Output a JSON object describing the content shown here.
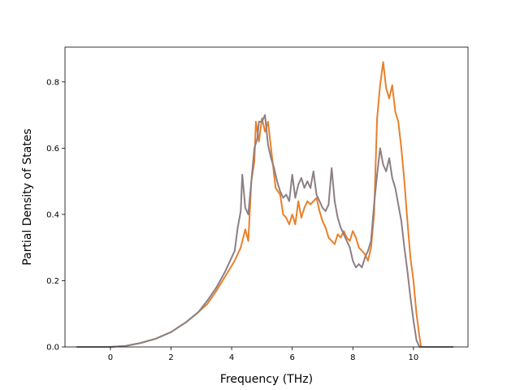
{
  "chart_data": {
    "type": "line",
    "title": "",
    "xlabel": "Frequency (THz)",
    "ylabel": "Partial Density of States",
    "xlim": [
      -1.5,
      11.8
    ],
    "ylim": [
      0,
      0.905
    ],
    "grid": false,
    "legend": "none",
    "x_ticks": [
      0,
      2,
      4,
      6,
      8,
      10
    ],
    "x_tick_labels": [
      "0",
      "2",
      "4",
      "6",
      "8",
      "10"
    ],
    "y_ticks": [
      0.0,
      0.2,
      0.4,
      0.6,
      0.8
    ],
    "y_tick_labels": [
      "0.0",
      "0.2",
      "0.4",
      "0.6",
      "0.8"
    ],
    "series": [
      {
        "color": "#e8802a",
        "points": [
          [
            -1.1,
            0.0
          ],
          [
            0.0,
            0.0
          ],
          [
            0.5,
            0.003
          ],
          [
            1.0,
            0.012
          ],
          [
            1.5,
            0.025
          ],
          [
            2.0,
            0.045
          ],
          [
            2.5,
            0.075
          ],
          [
            2.9,
            0.105
          ],
          [
            3.2,
            0.13
          ],
          [
            3.5,
            0.17
          ],
          [
            3.8,
            0.215
          ],
          [
            4.1,
            0.26
          ],
          [
            4.3,
            0.3
          ],
          [
            4.45,
            0.355
          ],
          [
            4.55,
            0.32
          ],
          [
            4.65,
            0.5
          ],
          [
            4.75,
            0.56
          ],
          [
            4.8,
            0.68
          ],
          [
            4.9,
            0.62
          ],
          [
            5.0,
            0.69
          ],
          [
            5.1,
            0.65
          ],
          [
            5.2,
            0.68
          ],
          [
            5.3,
            0.6
          ],
          [
            5.45,
            0.48
          ],
          [
            5.6,
            0.46
          ],
          [
            5.7,
            0.4
          ],
          [
            5.8,
            0.39
          ],
          [
            5.9,
            0.37
          ],
          [
            6.0,
            0.4
          ],
          [
            6.1,
            0.37
          ],
          [
            6.2,
            0.44
          ],
          [
            6.3,
            0.39
          ],
          [
            6.4,
            0.42
          ],
          [
            6.5,
            0.44
          ],
          [
            6.6,
            0.43
          ],
          [
            6.7,
            0.44
          ],
          [
            6.8,
            0.45
          ],
          [
            6.9,
            0.41
          ],
          [
            7.0,
            0.38
          ],
          [
            7.1,
            0.36
          ],
          [
            7.2,
            0.33
          ],
          [
            7.3,
            0.32
          ],
          [
            7.4,
            0.31
          ],
          [
            7.5,
            0.34
          ],
          [
            7.6,
            0.33
          ],
          [
            7.7,
            0.35
          ],
          [
            7.8,
            0.33
          ],
          [
            7.9,
            0.32
          ],
          [
            8.0,
            0.35
          ],
          [
            8.1,
            0.33
          ],
          [
            8.2,
            0.3
          ],
          [
            8.3,
            0.29
          ],
          [
            8.4,
            0.28
          ],
          [
            8.5,
            0.26
          ],
          [
            8.6,
            0.3
          ],
          [
            8.7,
            0.4
          ],
          [
            8.8,
            0.69
          ],
          [
            8.9,
            0.79
          ],
          [
            9.0,
            0.86
          ],
          [
            9.1,
            0.78
          ],
          [
            9.2,
            0.75
          ],
          [
            9.3,
            0.79
          ],
          [
            9.4,
            0.71
          ],
          [
            9.5,
            0.68
          ],
          [
            9.6,
            0.6
          ],
          [
            9.7,
            0.5
          ],
          [
            9.8,
            0.38
          ],
          [
            9.9,
            0.27
          ],
          [
            10.0,
            0.2
          ],
          [
            10.1,
            0.1
          ],
          [
            10.2,
            0.03
          ],
          [
            10.25,
            0.0
          ],
          [
            11.3,
            0.0
          ]
        ]
      },
      {
        "color": "#8c7f85",
        "points": [
          [
            -1.1,
            0.0
          ],
          [
            0.0,
            0.0
          ],
          [
            0.5,
            0.003
          ],
          [
            1.0,
            0.012
          ],
          [
            1.5,
            0.025
          ],
          [
            2.0,
            0.045
          ],
          [
            2.5,
            0.075
          ],
          [
            2.9,
            0.105
          ],
          [
            3.2,
            0.14
          ],
          [
            3.5,
            0.18
          ],
          [
            3.8,
            0.23
          ],
          [
            4.1,
            0.29
          ],
          [
            4.2,
            0.36
          ],
          [
            4.3,
            0.41
          ],
          [
            4.35,
            0.52
          ],
          [
            4.45,
            0.42
          ],
          [
            4.55,
            0.4
          ],
          [
            4.65,
            0.5
          ],
          [
            4.75,
            0.6
          ],
          [
            4.85,
            0.63
          ],
          [
            4.9,
            0.68
          ],
          [
            5.0,
            0.68
          ],
          [
            5.1,
            0.7
          ],
          [
            5.2,
            0.61
          ],
          [
            5.3,
            0.57
          ],
          [
            5.4,
            0.54
          ],
          [
            5.5,
            0.5
          ],
          [
            5.6,
            0.47
          ],
          [
            5.7,
            0.45
          ],
          [
            5.8,
            0.46
          ],
          [
            5.9,
            0.44
          ],
          [
            6.0,
            0.52
          ],
          [
            6.1,
            0.45
          ],
          [
            6.2,
            0.49
          ],
          [
            6.3,
            0.51
          ],
          [
            6.4,
            0.48
          ],
          [
            6.5,
            0.5
          ],
          [
            6.6,
            0.48
          ],
          [
            6.7,
            0.53
          ],
          [
            6.8,
            0.46
          ],
          [
            6.9,
            0.44
          ],
          [
            7.0,
            0.42
          ],
          [
            7.1,
            0.41
          ],
          [
            7.2,
            0.43
          ],
          [
            7.3,
            0.54
          ],
          [
            7.4,
            0.44
          ],
          [
            7.5,
            0.39
          ],
          [
            7.6,
            0.36
          ],
          [
            7.7,
            0.34
          ],
          [
            7.8,
            0.32
          ],
          [
            7.9,
            0.3
          ],
          [
            8.0,
            0.26
          ],
          [
            8.1,
            0.24
          ],
          [
            8.2,
            0.25
          ],
          [
            8.3,
            0.24
          ],
          [
            8.4,
            0.27
          ],
          [
            8.5,
            0.29
          ],
          [
            8.6,
            0.32
          ],
          [
            8.7,
            0.43
          ],
          [
            8.8,
            0.52
          ],
          [
            8.9,
            0.6
          ],
          [
            9.0,
            0.55
          ],
          [
            9.1,
            0.53
          ],
          [
            9.2,
            0.57
          ],
          [
            9.3,
            0.51
          ],
          [
            9.4,
            0.48
          ],
          [
            9.5,
            0.43
          ],
          [
            9.6,
            0.38
          ],
          [
            9.7,
            0.3
          ],
          [
            9.8,
            0.23
          ],
          [
            9.9,
            0.15
          ],
          [
            10.0,
            0.08
          ],
          [
            10.1,
            0.02
          ],
          [
            10.2,
            0.0
          ],
          [
            11.3,
            0.0
          ]
        ]
      }
    ]
  }
}
